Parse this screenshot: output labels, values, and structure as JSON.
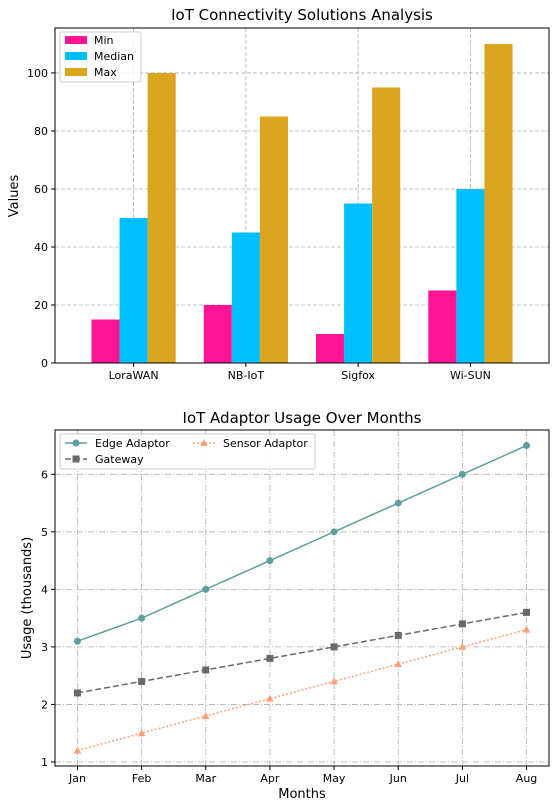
{
  "chart_data": [
    {
      "type": "bar",
      "title": "IoT Connectivity Solutions Analysis",
      "xlabel": "",
      "ylabel": "Values",
      "categories": [
        "LoraWAN",
        "NB-IoT",
        "Sigfox",
        "Wi-SUN"
      ],
      "series": [
        {
          "name": "Min",
          "values": [
            15,
            20,
            10,
            25
          ],
          "color": "#ff1493"
        },
        {
          "name": "Median",
          "values": [
            50,
            45,
            55,
            60
          ],
          "color": "#00bfff"
        },
        {
          "name": "Max",
          "values": [
            100,
            85,
            95,
            110
          ],
          "color": "#daa520"
        }
      ],
      "ylim": [
        0,
        115.5
      ],
      "yticks": [
        0,
        20,
        40,
        60,
        80,
        100
      ],
      "grid": true,
      "legend_position": "upper left"
    },
    {
      "type": "line",
      "title": "IoT Adaptor Usage Over Months",
      "xlabel": "Months",
      "ylabel": "Usage (thousands)",
      "categories": [
        "Jan",
        "Feb",
        "Mar",
        "Apr",
        "May",
        "Jun",
        "Jul",
        "Aug"
      ],
      "series": [
        {
          "name": "Edge Adaptor",
          "values": [
            3.1,
            3.5,
            4.0,
            4.5,
            5.0,
            5.5,
            6.0,
            6.5
          ],
          "color": "#5f9ea0",
          "marker": "circle",
          "linestyle": "solid"
        },
        {
          "name": "Gateway",
          "values": [
            2.2,
            2.4,
            2.6,
            2.8,
            3.0,
            3.2,
            3.4,
            3.6
          ],
          "color": "#696969",
          "marker": "square",
          "linestyle": "dashed"
        },
        {
          "name": "Sensor Adaptor",
          "values": [
            1.2,
            1.5,
            1.8,
            2.1,
            2.4,
            2.7,
            3.0,
            3.3
          ],
          "color": "#ffa07a",
          "marker": "triangle",
          "linestyle": "dotted"
        }
      ],
      "ylim": [
        0.93,
        6.77
      ],
      "yticks": [
        1,
        2,
        3,
        4,
        5,
        6
      ],
      "grid": true,
      "legend_position": "upper left"
    }
  ]
}
